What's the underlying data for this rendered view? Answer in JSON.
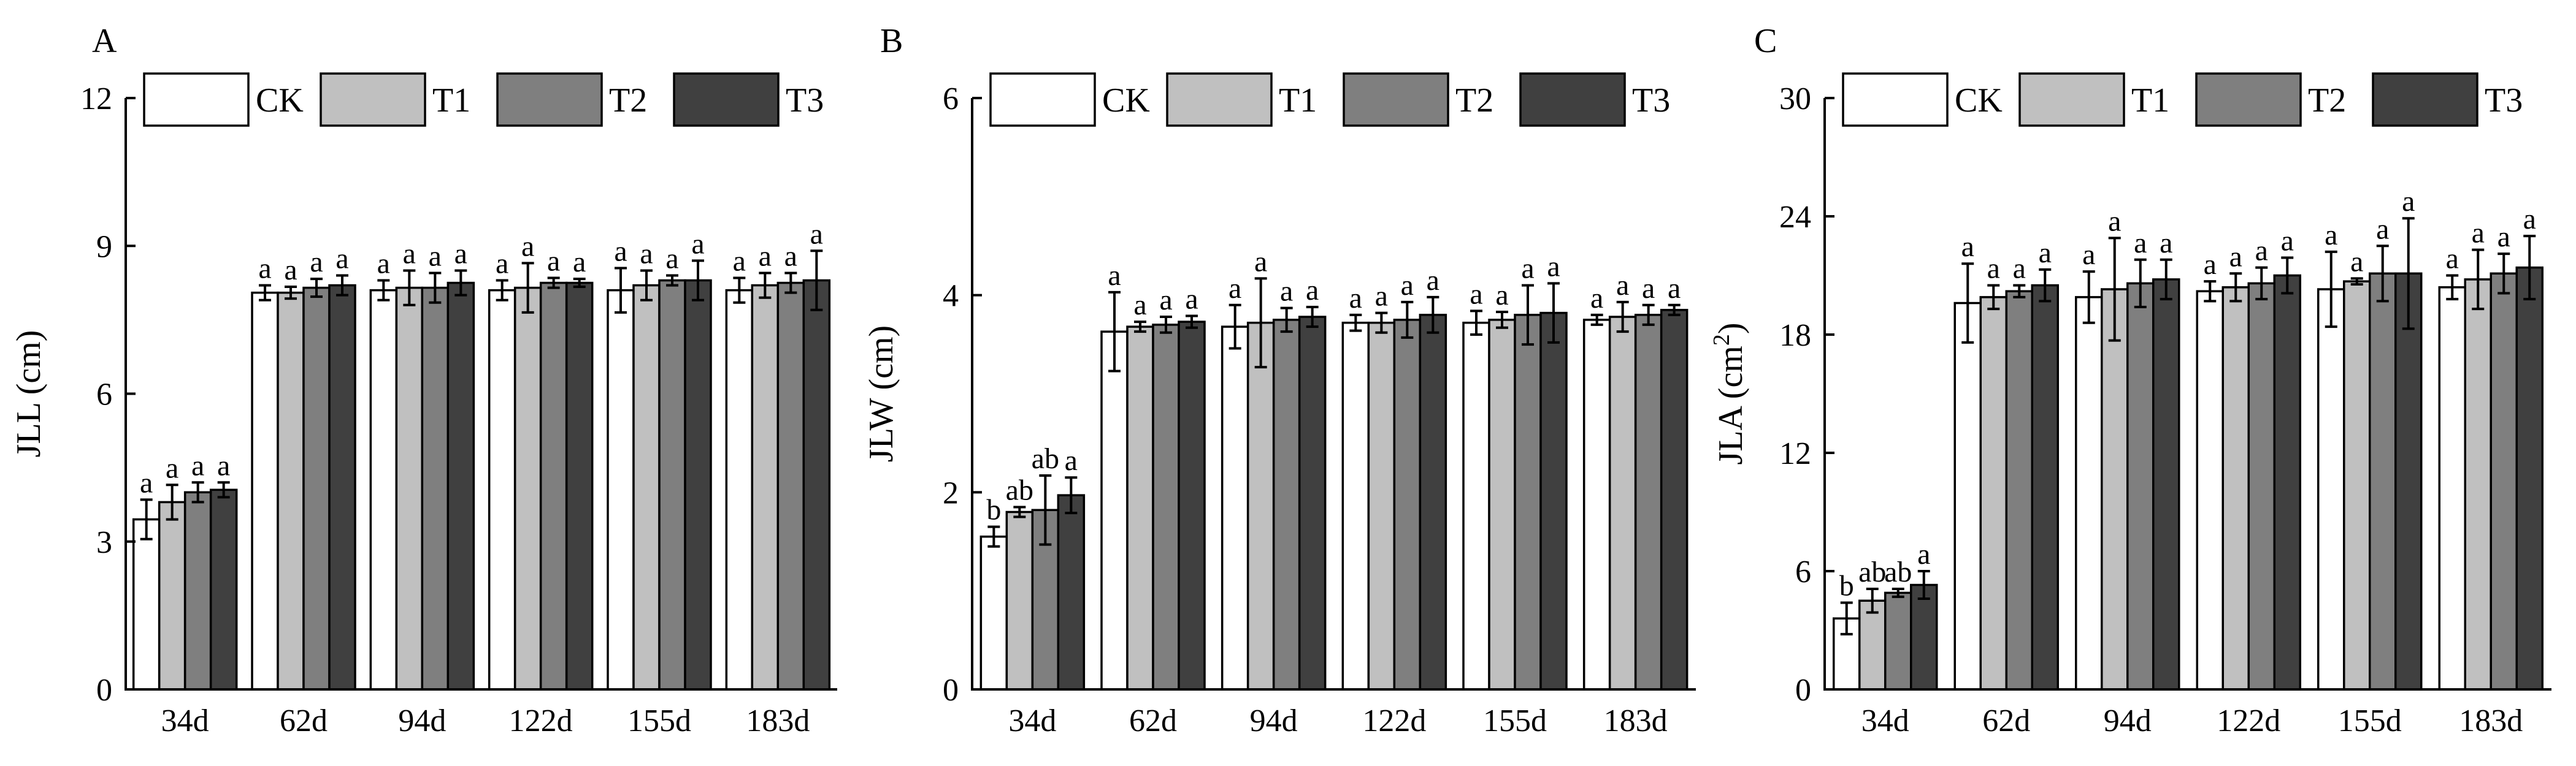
{
  "colors": {
    "CK": "#ffffff",
    "T1": "#c0c0c0",
    "T2": "#7f7f7f",
    "T3": "#404040"
  },
  "chart_data": [
    {
      "panel": "A",
      "type": "bar",
      "ylabel": "JLL (cm)",
      "ylabel_sup": "",
      "ylabel_after": "",
      "ylim": [
        0,
        12
      ],
      "yticks": [
        0,
        3,
        6,
        9,
        12
      ],
      "categories": [
        "34d",
        "62d",
        "94d",
        "122d",
        "155d",
        "183d"
      ],
      "legend": [
        "CK",
        "T1",
        "T2",
        "T3"
      ],
      "legend_position": "top",
      "series": [
        {
          "name": "CK",
          "values": [
            3.45,
            8.05,
            8.1,
            8.1,
            8.1,
            8.1
          ],
          "errors": [
            0.4,
            0.15,
            0.2,
            0.2,
            0.45,
            0.25
          ],
          "labels": [
            "a",
            "a",
            "a",
            "a",
            "a",
            "a"
          ]
        },
        {
          "name": "T1",
          "values": [
            3.8,
            8.05,
            8.15,
            8.15,
            8.2,
            8.2
          ],
          "errors": [
            0.35,
            0.12,
            0.35,
            0.5,
            0.3,
            0.25
          ],
          "labels": [
            "a",
            "a",
            "a",
            "a",
            "a",
            "a"
          ]
        },
        {
          "name": "T2",
          "values": [
            4.0,
            8.15,
            8.15,
            8.25,
            8.3,
            8.25
          ],
          "errors": [
            0.2,
            0.18,
            0.3,
            0.1,
            0.1,
            0.2
          ],
          "labels": [
            "a",
            "a",
            "a",
            "a",
            "a",
            "a"
          ]
        },
        {
          "name": "T3",
          "values": [
            4.05,
            8.2,
            8.25,
            8.25,
            8.3,
            8.3
          ],
          "errors": [
            0.15,
            0.2,
            0.25,
            0.08,
            0.4,
            0.6
          ],
          "labels": [
            "a",
            "a",
            "a",
            "a",
            "a",
            "a"
          ]
        }
      ]
    },
    {
      "panel": "B",
      "type": "bar",
      "ylabel": "JLW (cm)",
      "ylabel_sup": "",
      "ylabel_after": "",
      "ylim": [
        0,
        6
      ],
      "yticks": [
        0,
        2,
        4,
        6
      ],
      "categories": [
        "34d",
        "62d",
        "94d",
        "122d",
        "155d",
        "183d"
      ],
      "legend": [
        "CK",
        "T1",
        "T2",
        "T3"
      ],
      "legend_position": "top",
      "series": [
        {
          "name": "CK",
          "values": [
            1.55,
            3.63,
            3.68,
            3.72,
            3.72,
            3.75
          ],
          "errors": [
            0.1,
            0.4,
            0.22,
            0.08,
            0.12,
            0.05
          ],
          "labels": [
            "b",
            "a",
            "a",
            "a",
            "a",
            "a"
          ]
        },
        {
          "name": "T1",
          "values": [
            1.8,
            3.68,
            3.72,
            3.72,
            3.75,
            3.78
          ],
          "errors": [
            0.05,
            0.05,
            0.45,
            0.1,
            0.08,
            0.15
          ],
          "labels": [
            "ab",
            "a",
            "a",
            "a",
            "a",
            "a"
          ]
        },
        {
          "name": "T2",
          "values": [
            1.82,
            3.7,
            3.75,
            3.75,
            3.8,
            3.8
          ],
          "errors": [
            0.35,
            0.08,
            0.12,
            0.18,
            0.3,
            0.1
          ],
          "labels": [
            "ab",
            "a",
            "a",
            "a",
            "a",
            "a"
          ]
        },
        {
          "name": "T3",
          "values": [
            1.97,
            3.73,
            3.78,
            3.8,
            3.82,
            3.85
          ],
          "errors": [
            0.18,
            0.06,
            0.1,
            0.18,
            0.3,
            0.05
          ],
          "labels": [
            "a",
            "a",
            "a",
            "a",
            "a",
            "a"
          ]
        }
      ]
    },
    {
      "panel": "C",
      "type": "bar",
      "ylabel": "JLA (cm",
      "ylabel_sup": "2",
      "ylabel_after": ")",
      "ylim": [
        0,
        30
      ],
      "yticks": [
        0,
        6,
        12,
        18,
        24,
        30
      ],
      "categories": [
        "34d",
        "62d",
        "94d",
        "122d",
        "155d",
        "183d"
      ],
      "legend": [
        "CK",
        "T1",
        "T2",
        "T3"
      ],
      "legend_position": "top",
      "series": [
        {
          "name": "CK",
          "values": [
            3.6,
            19.6,
            19.9,
            20.2,
            20.3,
            20.4
          ],
          "errors": [
            0.8,
            2.0,
            1.3,
            0.5,
            1.9,
            0.6
          ],
          "labels": [
            "b",
            "a",
            "a",
            "a",
            "a",
            "a"
          ]
        },
        {
          "name": "T1",
          "values": [
            4.5,
            19.9,
            20.3,
            20.4,
            20.7,
            20.8
          ],
          "errors": [
            0.6,
            0.6,
            2.6,
            0.7,
            0.15,
            1.5
          ],
          "labels": [
            "ab",
            "a",
            "a",
            "a",
            "a",
            "a"
          ]
        },
        {
          "name": "T2",
          "values": [
            4.9,
            20.2,
            20.6,
            20.6,
            21.1,
            21.1
          ],
          "errors": [
            0.2,
            0.3,
            1.2,
            0.8,
            1.4,
            1.0
          ],
          "labels": [
            "ab",
            "a",
            "a",
            "a",
            "a",
            "a"
          ]
        },
        {
          "name": "T3",
          "values": [
            5.3,
            20.5,
            20.8,
            21.0,
            21.1,
            21.4
          ],
          "errors": [
            0.7,
            0.8,
            1.0,
            0.9,
            2.8,
            1.6
          ],
          "labels": [
            "a",
            "a",
            "a",
            "a",
            "a",
            "a"
          ]
        }
      ]
    }
  ]
}
